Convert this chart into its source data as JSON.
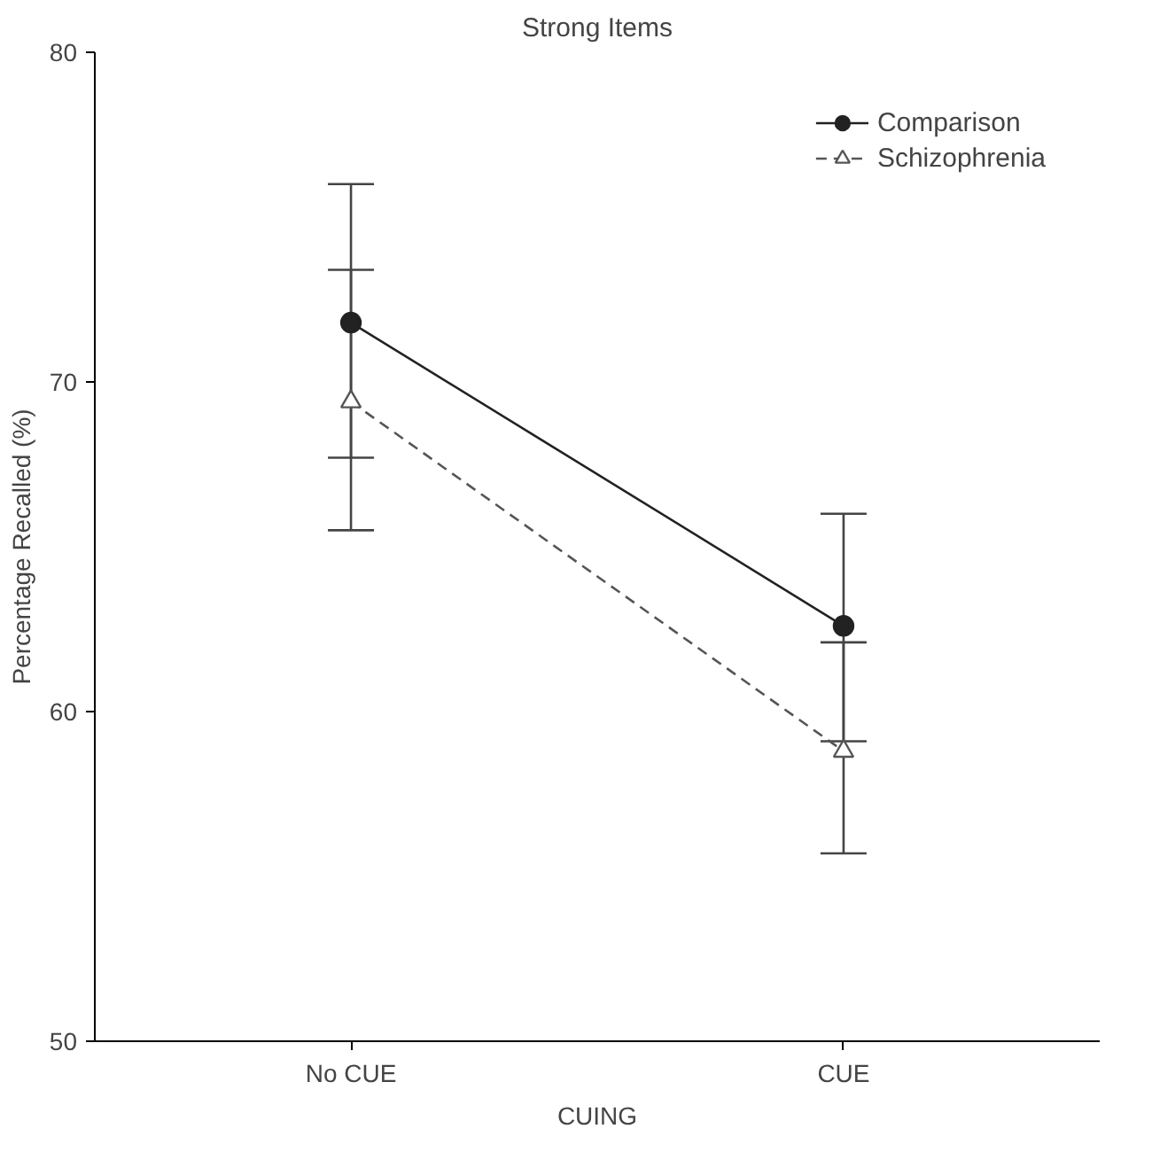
{
  "chart_data": {
    "type": "line",
    "title": "Strong Items",
    "xlabel": "CUING",
    "ylabel": "Percentage Recalled (%)",
    "categories": [
      "No CUE",
      "CUE"
    ],
    "ylim": [
      50,
      80
    ],
    "yticks": [
      50,
      60,
      70,
      80
    ],
    "grid": false,
    "legend": "top right",
    "series": [
      {
        "name": "Comparison",
        "color": "#222222",
        "values": [
          71.8,
          62.6
        ],
        "errors": [
          [
            67.7,
            76.0
          ],
          [
            59.1,
            66.0
          ]
        ],
        "marker": "circle",
        "line_style": "solid"
      },
      {
        "name": "Schizophrenia",
        "color": "#555555",
        "values": [
          69.4,
          58.8
        ],
        "errors": [
          [
            65.5,
            73.4
          ],
          [
            55.7,
            62.1
          ]
        ],
        "marker": "triangle",
        "line_style": "dashed"
      }
    ]
  }
}
